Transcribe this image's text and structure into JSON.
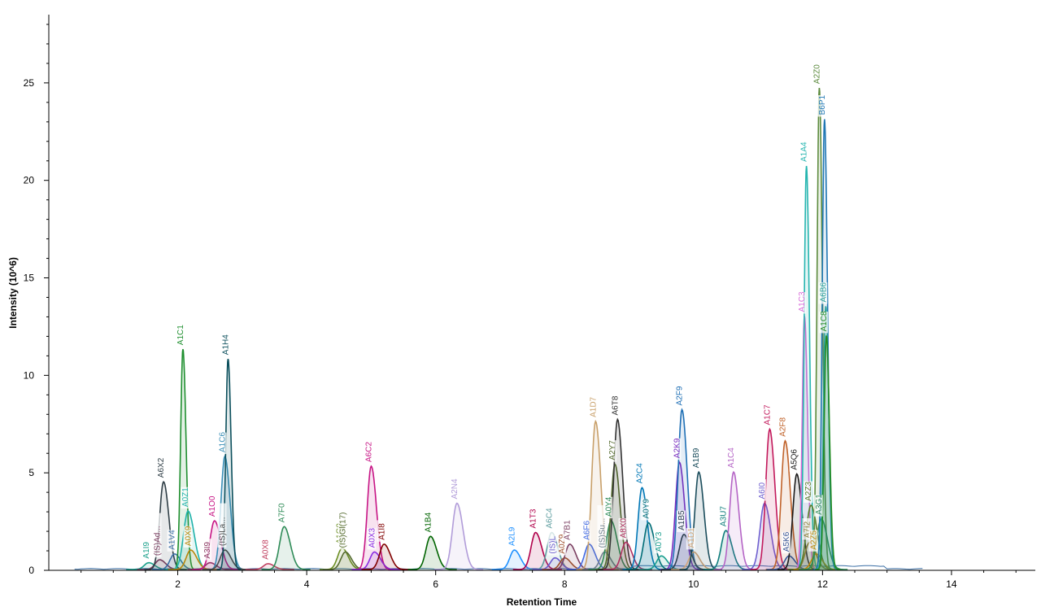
{
  "chart_data": {
    "type": "line",
    "xlabel": "Retention Time",
    "ylabel": "Intensity (10^6)",
    "xlim": [
      0,
      15.3
    ],
    "ylim": [
      0,
      28.5
    ],
    "x_ticks": [
      2,
      4,
      6,
      8,
      10,
      12,
      14
    ],
    "y_ticks": [
      0,
      5,
      10,
      15,
      20,
      25
    ],
    "grid": false,
    "peaks": [
      {
        "label": "A1I9",
        "rt": 1.55,
        "height": 0.35,
        "color": "#1aa08a"
      },
      {
        "label": "(IS)Ad...",
        "rt": 1.72,
        "height": 0.5,
        "color": "#7a3b5e"
      },
      {
        "label": "A6X2",
        "rt": 1.78,
        "height": 4.5,
        "color": "#2f3e46"
      },
      {
        "label": "A1V4",
        "rt": 1.95,
        "height": 0.8,
        "color": "#3a6ea5"
      },
      {
        "label": "A1C1",
        "rt": 2.08,
        "height": 11.3,
        "color": "#1f8f2f"
      },
      {
        "label": "A0Z1",
        "rt": 2.16,
        "height": 3.0,
        "color": "#20b2aa"
      },
      {
        "label": "A0X9",
        "rt": 2.2,
        "height": 1.0,
        "color": "#b8860b"
      },
      {
        "label": "A3I9",
        "rt": 2.5,
        "height": 0.35,
        "color": "#8b3a62"
      },
      {
        "label": "A1O0",
        "rt": 2.57,
        "height": 2.5,
        "color": "#c71585"
      },
      {
        "label": "A1C6",
        "rt": 2.73,
        "height": 5.8,
        "color": "#3a8fb7"
      },
      {
        "label": "(IS)La...",
        "rt": 2.73,
        "height": 1.0,
        "color": "#4b4b4b"
      },
      {
        "label": "A1H4",
        "rt": 2.78,
        "height": 10.8,
        "color": "#0b4f5c"
      },
      {
        "label": "A0X8",
        "rt": 3.4,
        "height": 0.3,
        "color": "#c04060"
      },
      {
        "label": "A7F0",
        "rt": 3.65,
        "height": 2.2,
        "color": "#2e8b57"
      },
      {
        "label": "A1G0",
        "rt": 4.55,
        "height": 1.1,
        "color": "#6b8e23"
      },
      {
        "label": "(IS)Gl(17)",
        "rt": 4.6,
        "height": 0.9,
        "color": "#556b2f"
      },
      {
        "label": "A6C2",
        "rt": 5.0,
        "height": 5.3,
        "color": "#c71585"
      },
      {
        "label": "A0X3",
        "rt": 5.05,
        "height": 0.9,
        "color": "#8a2be2"
      },
      {
        "label": "A1I8",
        "rt": 5.2,
        "height": 1.3,
        "color": "#800000"
      },
      {
        "label": "A1B4",
        "rt": 5.92,
        "height": 1.7,
        "color": "#006400"
      },
      {
        "label": "A2N4",
        "rt": 6.33,
        "height": 3.4,
        "color": "#b19cd9"
      },
      {
        "label": "A2L9",
        "rt": 7.22,
        "height": 1.0,
        "color": "#1e90ff"
      },
      {
        "label": "A1T3",
        "rt": 7.55,
        "height": 1.9,
        "color": "#b0004a"
      },
      {
        "label": "A6C4",
        "rt": 7.8,
        "height": 1.9,
        "color": "#5f9ea0"
      },
      {
        "label": "(IS)L",
        "rt": 7.85,
        "height": 0.6,
        "color": "#6a5acd"
      },
      {
        "label": "A0Z9",
        "rt": 8.0,
        "height": 0.6,
        "color": "#a0522d"
      },
      {
        "label": "A7B1",
        "rt": 8.08,
        "height": 1.3,
        "color": "#7b3f61"
      },
      {
        "label": "A6F6",
        "rt": 8.38,
        "height": 1.3,
        "color": "#4169e1"
      },
      {
        "label": "A1D7",
        "rt": 8.48,
        "height": 7.6,
        "color": "#c8a06a"
      },
      {
        "label": "(IS)Su...",
        "rt": 8.62,
        "height": 0.9,
        "color": "#708090"
      },
      {
        "label": "A0Y4",
        "rt": 8.72,
        "height": 2.5,
        "color": "#2e8b57"
      },
      {
        "label": "A2Y7",
        "rt": 8.78,
        "height": 5.4,
        "color": "#556b2f"
      },
      {
        "label": "A6T8",
        "rt": 8.82,
        "height": 7.7,
        "color": "#333333"
      },
      {
        "label": "A8X0",
        "rt": 8.95,
        "height": 1.4,
        "color": "#b03060"
      },
      {
        "label": "A2C4",
        "rt": 9.2,
        "height": 4.2,
        "color": "#0077b6"
      },
      {
        "label": "A0Y9",
        "rt": 9.3,
        "height": 2.4,
        "color": "#006d77"
      },
      {
        "label": "A0Y3",
        "rt": 9.5,
        "height": 0.7,
        "color": "#1a9e8e"
      },
      {
        "label": "A2K9",
        "rt": 9.78,
        "height": 5.5,
        "color": "#7b2cbf"
      },
      {
        "label": "A2F9",
        "rt": 9.82,
        "height": 8.2,
        "color": "#1e6fb5"
      },
      {
        "label": "A1B5",
        "rt": 9.85,
        "height": 1.8,
        "color": "#2c3e50"
      },
      {
        "label": "A1D1",
        "rt": 10.0,
        "height": 0.9,
        "color": "#d2a679"
      },
      {
        "label": "A1B9",
        "rt": 10.08,
        "height": 5.0,
        "color": "#1b4d5c"
      },
      {
        "label": "A3U7",
        "rt": 10.5,
        "height": 2.0,
        "color": "#0e7c7b"
      },
      {
        "label": "A1C4",
        "rt": 10.62,
        "height": 5.0,
        "color": "#b565c6"
      },
      {
        "label": "A6I0",
        "rt": 11.1,
        "height": 3.4,
        "color": "#6f5fcf"
      },
      {
        "label": "A1C7",
        "rt": 11.18,
        "height": 7.2,
        "color": "#c2185b"
      },
      {
        "label": "A2F8",
        "rt": 11.42,
        "height": 6.6,
        "color": "#c0622a"
      },
      {
        "label": "A5K6",
        "rt": 11.48,
        "height": 0.7,
        "color": "#3b5998"
      },
      {
        "label": "A5Q6",
        "rt": 11.6,
        "height": 4.9,
        "color": "#1a1a1a"
      },
      {
        "label": "A1C3",
        "rt": 11.72,
        "height": 13.0,
        "color": "#d86ad8"
      },
      {
        "label": "A1A4",
        "rt": 11.75,
        "height": 20.7,
        "color": "#26b5b0"
      },
      {
        "label": "A7I2",
        "rt": 11.8,
        "height": 1.4,
        "color": "#8b7d3a"
      },
      {
        "label": "A2Z3",
        "rt": 11.82,
        "height": 3.3,
        "color": "#5a7d2a"
      },
      {
        "label": "A2Z5",
        "rt": 11.9,
        "height": 0.8,
        "color": "#b8860b"
      },
      {
        "label": "A2Z0",
        "rt": 11.95,
        "height": 24.7,
        "color": "#5b8a3c"
      },
      {
        "label": "A3G1",
        "rt": 11.98,
        "height": 2.6,
        "color": "#2e8b57"
      },
      {
        "label": "B6P1",
        "rt": 12.03,
        "height": 23.1,
        "color": "#1f77b4"
      },
      {
        "label": "A6B6",
        "rt": 12.05,
        "height": 13.5,
        "color": "#2aa198"
      },
      {
        "label": "A1C8",
        "rt": 12.06,
        "height": 12.0,
        "color": "#228b22"
      }
    ]
  }
}
